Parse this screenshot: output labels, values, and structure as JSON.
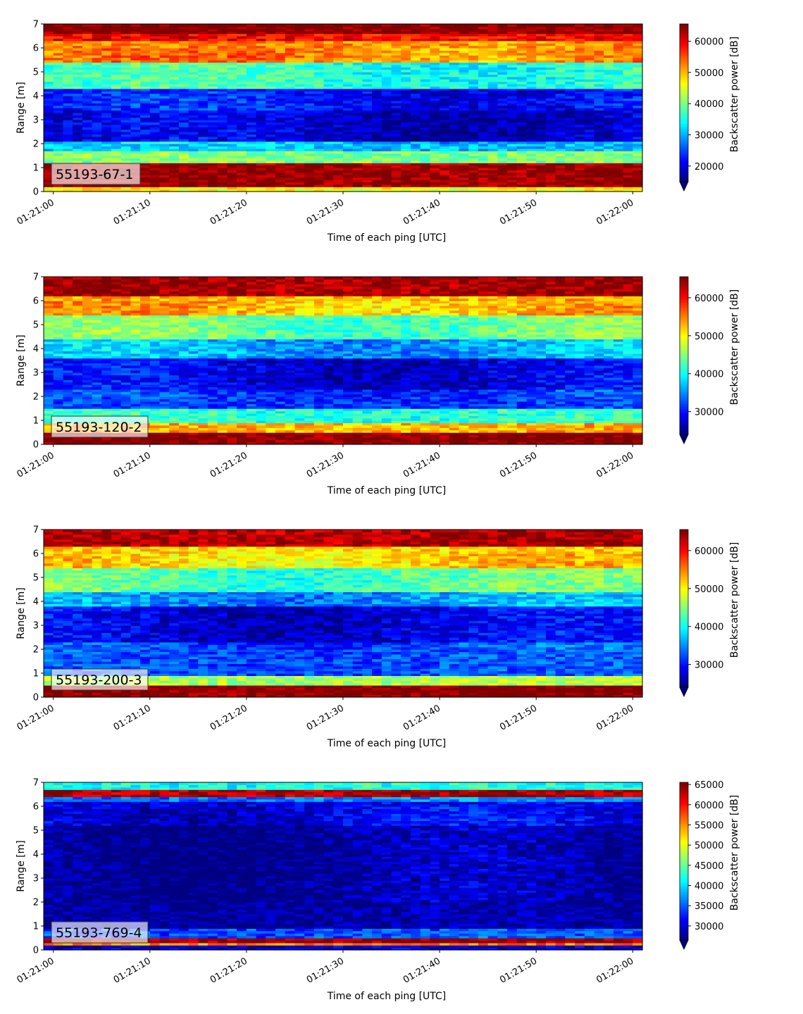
{
  "chart_data": [
    {
      "type": "heatmap",
      "panel_label": "55193-67-1",
      "xlabel": "Time of each ping [UTC]",
      "ylabel": "Range [m]",
      "colorbar_label": "Backscatter power [dB]",
      "colormap": "jet",
      "clim": [
        15000,
        65535
      ],
      "colorbar_ticks": [
        "20000",
        "30000",
        "40000",
        "50000",
        "60000"
      ],
      "xticks": [
        "01:21:00",
        "01:21:10",
        "01:21:20",
        "01:21:30",
        "01:21:40",
        "01:21:50",
        "01:22:00"
      ],
      "yticks": [
        "0",
        "1",
        "2",
        "3",
        "4",
        "5",
        "6",
        "7"
      ],
      "xlim_seconds": [
        -1,
        61
      ],
      "ylim": [
        0,
        7
      ],
      "grid": false,
      "bands": [
        {
          "range": [
            0.0,
            0.2
          ],
          "level": 0.62
        },
        {
          "range": [
            0.2,
            1.25
          ],
          "level": 0.98
        },
        {
          "range": [
            1.25,
            1.7
          ],
          "level": 0.5
        },
        {
          "range": [
            1.7,
            2.1
          ],
          "level": 0.32
        },
        {
          "range": [
            2.1,
            3.4
          ],
          "level": 0.08
        },
        {
          "range": [
            3.4,
            4.3
          ],
          "level": 0.14
        },
        {
          "range": [
            4.3,
            5.4
          ],
          "level": 0.42
        },
        {
          "range": [
            5.4,
            6.3
          ],
          "level": 0.74
        },
        {
          "range": [
            6.3,
            6.6
          ],
          "level": 0.88
        },
        {
          "range": [
            6.6,
            7.0
          ],
          "level": 1.0
        }
      ]
    },
    {
      "type": "heatmap",
      "panel_label": "55193-120-2",
      "xlabel": "Time of each ping [UTC]",
      "ylabel": "Range [m]",
      "colorbar_label": "Backscatter power [dB]",
      "colormap": "jet",
      "clim": [
        24000,
        65535
      ],
      "colorbar_ticks": [
        "30000",
        "40000",
        "50000",
        "60000"
      ],
      "xticks": [
        "01:21:00",
        "01:21:10",
        "01:21:20",
        "01:21:30",
        "01:21:40",
        "01:21:50",
        "01:22:00"
      ],
      "yticks": [
        "0",
        "1",
        "2",
        "3",
        "4",
        "5",
        "6",
        "7"
      ],
      "xlim_seconds": [
        -1,
        61
      ],
      "ylim": [
        0,
        7
      ],
      "grid": false,
      "bands": [
        {
          "range": [
            0.0,
            0.5
          ],
          "level": 1.0
        },
        {
          "range": [
            0.5,
            0.9
          ],
          "level": 0.7
        },
        {
          "range": [
            0.9,
            1.5
          ],
          "level": 0.42
        },
        {
          "range": [
            1.5,
            2.3
          ],
          "level": 0.18
        },
        {
          "range": [
            2.3,
            3.6
          ],
          "level": 0.1
        },
        {
          "range": [
            3.6,
            4.4
          ],
          "level": 0.3
        },
        {
          "range": [
            4.4,
            5.4
          ],
          "level": 0.48
        },
        {
          "range": [
            5.4,
            6.2
          ],
          "level": 0.7
        },
        {
          "range": [
            6.2,
            7.0
          ],
          "level": 0.97
        }
      ]
    },
    {
      "type": "heatmap",
      "panel_label": "55193-200-3",
      "xlabel": "Time of each ping [UTC]",
      "ylabel": "Range [m]",
      "colorbar_label": "Backscatter power [dB]",
      "colormap": "jet",
      "clim": [
        24000,
        65535
      ],
      "colorbar_ticks": [
        "30000",
        "40000",
        "50000",
        "60000"
      ],
      "xticks": [
        "01:21:00",
        "01:21:10",
        "01:21:20",
        "01:21:30",
        "01:21:40",
        "01:21:50",
        "01:22:00"
      ],
      "yticks": [
        "0",
        "1",
        "2",
        "3",
        "4",
        "5",
        "6",
        "7"
      ],
      "xlim_seconds": [
        -1,
        61
      ],
      "ylim": [
        0,
        7
      ],
      "grid": false,
      "bands": [
        {
          "range": [
            0.0,
            0.5
          ],
          "level": 1.0
        },
        {
          "range": [
            0.5,
            0.9
          ],
          "level": 0.55
        },
        {
          "range": [
            0.9,
            2.3
          ],
          "level": 0.2
        },
        {
          "range": [
            2.3,
            3.8
          ],
          "level": 0.1
        },
        {
          "range": [
            3.8,
            4.4
          ],
          "level": 0.28
        },
        {
          "range": [
            4.4,
            5.4
          ],
          "level": 0.46
        },
        {
          "range": [
            5.4,
            6.3
          ],
          "level": 0.66
        },
        {
          "range": [
            6.3,
            7.0
          ],
          "level": 0.95
        }
      ]
    },
    {
      "type": "heatmap",
      "panel_label": "55193-769-4",
      "xlabel": "Time of each ping [UTC]",
      "ylabel": "Range [m]",
      "colorbar_label": "Backscatter power [dB]",
      "colormap": "jet",
      "clim": [
        26500,
        65535
      ],
      "colorbar_ticks": [
        "30000",
        "35000",
        "40000",
        "45000",
        "50000",
        "55000",
        "60000",
        "65000"
      ],
      "xticks": [
        "01:21:00",
        "01:21:10",
        "01:21:20",
        "01:21:30",
        "01:21:40",
        "01:21:50",
        "01:22:00"
      ],
      "yticks": [
        "0",
        "1",
        "2",
        "3",
        "4",
        "5",
        "6",
        "7"
      ],
      "xlim_seconds": [
        -1,
        61
      ],
      "ylim": [
        0,
        7
      ],
      "grid": false,
      "bands": [
        {
          "range": [
            0.0,
            0.2
          ],
          "level": 0.08
        },
        {
          "range": [
            0.2,
            0.3
          ],
          "level": 0.75
        },
        {
          "range": [
            0.3,
            0.5
          ],
          "level": 0.98
        },
        {
          "range": [
            0.5,
            0.9
          ],
          "level": 0.2
        },
        {
          "range": [
            0.9,
            5.2
          ],
          "level": 0.03
        },
        {
          "range": [
            5.2,
            6.2
          ],
          "level": 0.1
        },
        {
          "range": [
            6.2,
            6.4
          ],
          "level": 0.25
        },
        {
          "range": [
            6.4,
            6.75
          ],
          "level": 0.95
        },
        {
          "range": [
            6.75,
            7.0
          ],
          "level": 0.4
        }
      ]
    }
  ]
}
